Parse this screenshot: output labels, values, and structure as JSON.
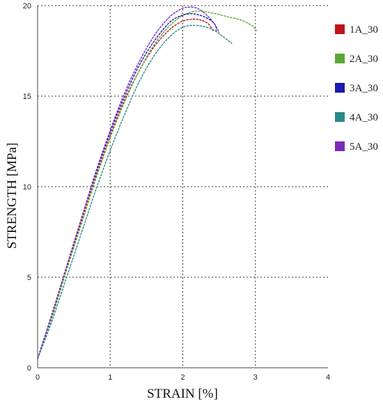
{
  "chart_data": {
    "type": "line",
    "xlabel": "STRAIN [%]",
    "ylabel": "STRENGTH [MPa]",
    "xlim": [
      0,
      4
    ],
    "ylim": [
      0,
      20
    ],
    "x_ticks": [
      "0",
      "1",
      "2",
      "3",
      "4"
    ],
    "y_ticks": [
      "0",
      "5",
      "10",
      "15",
      "20"
    ],
    "grid": "dotted",
    "legend_position": "right",
    "series": [
      {
        "name": "1A_30",
        "color": "#c0141c",
        "x": [
          0,
          0.2,
          0.4,
          0.6,
          0.8,
          1.0,
          1.2,
          1.4,
          1.6,
          1.8,
          1.95,
          2.05,
          2.15,
          2.25,
          2.35,
          2.42
        ],
        "y": [
          0.5,
          2.9,
          5.5,
          8.0,
          10.5,
          12.8,
          14.8,
          16.4,
          17.7,
          18.6,
          19.05,
          19.2,
          19.25,
          19.2,
          19.0,
          18.6
        ]
      },
      {
        "name": "2A_30",
        "color": "#5aa832",
        "x": [
          0,
          0.2,
          0.4,
          0.6,
          0.8,
          1.0,
          1.2,
          1.4,
          1.6,
          1.8,
          2.0,
          2.2,
          2.4,
          2.6,
          2.8,
          2.95,
          3.02
        ],
        "y": [
          0.5,
          2.8,
          5.4,
          7.9,
          10.4,
          12.7,
          14.7,
          16.4,
          17.8,
          18.8,
          19.45,
          19.7,
          19.6,
          19.4,
          19.2,
          18.9,
          18.6
        ]
      },
      {
        "name": "3A_30",
        "color": "#1a1ab0",
        "x": [
          0,
          0.2,
          0.4,
          0.6,
          0.8,
          1.0,
          1.2,
          1.4,
          1.6,
          1.8,
          1.95,
          2.1,
          2.25,
          2.38,
          2.45,
          2.46
        ],
        "y": [
          0.5,
          3.0,
          5.6,
          8.2,
          10.7,
          13.0,
          15.0,
          16.7,
          18.0,
          19.0,
          19.4,
          19.55,
          19.45,
          19.2,
          18.9,
          18.6
        ]
      },
      {
        "name": "4A_30",
        "color": "#2a8a8c",
        "x": [
          0,
          0.2,
          0.4,
          0.6,
          0.8,
          1.0,
          1.2,
          1.4,
          1.6,
          1.8,
          2.0,
          2.2,
          2.4,
          2.55,
          2.68
        ],
        "y": [
          0.5,
          2.6,
          5.0,
          7.4,
          9.8,
          12.0,
          14.0,
          15.8,
          17.2,
          18.2,
          18.8,
          18.9,
          18.7,
          18.3,
          17.9
        ]
      },
      {
        "name": "5A_30",
        "color": "#7a2ab8",
        "x": [
          0,
          0.2,
          0.4,
          0.6,
          0.8,
          1.0,
          1.2,
          1.4,
          1.6,
          1.8,
          1.95,
          2.05,
          2.2,
          2.35,
          2.45,
          2.5
        ],
        "y": [
          0.5,
          3.0,
          5.6,
          8.2,
          10.8,
          13.1,
          15.2,
          16.9,
          18.3,
          19.3,
          19.75,
          19.9,
          19.85,
          19.4,
          18.9,
          18.5
        ]
      }
    ]
  }
}
